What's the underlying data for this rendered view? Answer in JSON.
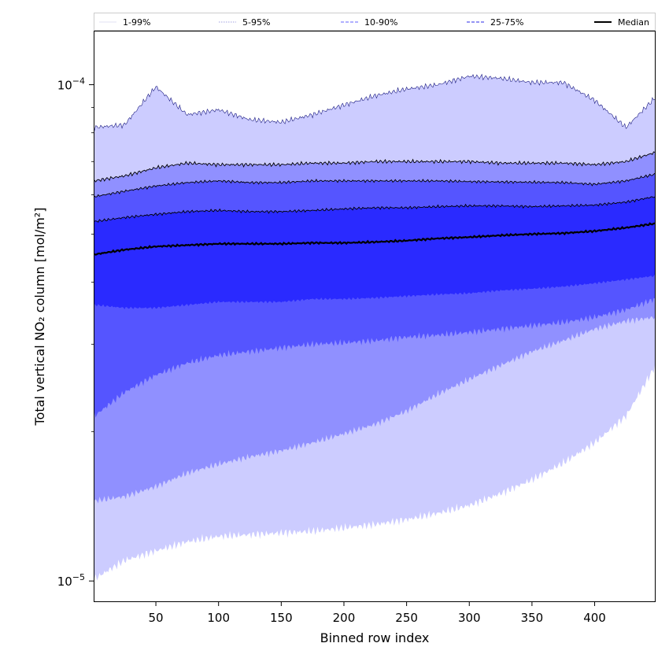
{
  "chart_data": {
    "type": "area",
    "title": "",
    "xlabel": "Binned row index",
    "ylabel": "Total vertical NO₂ column [mol/m²]",
    "xscale": "linear",
    "yscale": "log",
    "xlim": [
      1,
      448
    ],
    "ylim": [
      9.1e-06,
      0.000128
    ],
    "x_ticks": [
      50,
      100,
      150,
      200,
      250,
      300,
      350,
      400
    ],
    "x_tick_labels": [
      "50",
      "100",
      "150",
      "200",
      "250",
      "300",
      "350",
      "400"
    ],
    "y_ticks": [
      1e-05,
      0.0001
    ],
    "y_tick_labels": [
      {
        "base": "10",
        "exp": "−5"
      },
      {
        "base": "10",
        "exp": "−4"
      }
    ],
    "legend": {
      "position": "top",
      "entries": [
        {
          "label": "1-99%",
          "color": "#e6e6f5",
          "style": "solid"
        },
        {
          "label": "5-95%",
          "color": "#b3b3e6",
          "style": "dotted"
        },
        {
          "label": "10-90%",
          "color": "#8080ff",
          "style": "dashed"
        },
        {
          "label": "25-75%",
          "color": "#5555ee",
          "style": "dashed"
        },
        {
          "label": "Median",
          "color": "#000000",
          "style": "solid"
        }
      ]
    },
    "x_samples": [
      1,
      25,
      50,
      75,
      100,
      125,
      150,
      175,
      200,
      225,
      250,
      275,
      300,
      325,
      350,
      375,
      400,
      425,
      448
    ],
    "bands": [
      {
        "name": "1-99%",
        "color": "#ccccff",
        "lower": [
          1.01e-05,
          1.1e-05,
          1.15e-05,
          1.2e-05,
          1.23e-05,
          1.24e-05,
          1.25e-05,
          1.26e-05,
          1.28e-05,
          1.3e-05,
          1.33e-05,
          1.37e-05,
          1.42e-05,
          1.5e-05,
          1.6e-05,
          1.73e-05,
          1.9e-05,
          2.15e-05,
          2.7e-05
        ],
        "upper": [
          8.2e-05,
          8.3e-05,
          9.9e-05,
          8.7e-05,
          8.9e-05,
          8.5e-05,
          8.4e-05,
          8.7e-05,
          9.1e-05,
          9.5e-05,
          9.8e-05,
          0.0001,
          0.000104,
          0.000103,
          0.000101,
          0.000101,
          9.3e-05,
          8.2e-05,
          9.4e-05
        ]
      },
      {
        "name": "5-95%",
        "color": "#9090ff",
        "lower": [
          1.45e-05,
          1.48e-05,
          1.55e-05,
          1.65e-05,
          1.72e-05,
          1.78e-05,
          1.83e-05,
          1.9e-05,
          1.98e-05,
          2.07e-05,
          2.2e-05,
          2.38e-05,
          2.55e-05,
          2.72e-05,
          2.9e-05,
          3.05e-05,
          3.22e-05,
          3.34e-05,
          3.4e-05
        ],
        "upper": [
          6.4e-05,
          6.55e-05,
          6.8e-05,
          6.95e-05,
          6.9e-05,
          6.9e-05,
          6.9e-05,
          6.95e-05,
          6.95e-05,
          7e-05,
          7e-05,
          7e-05,
          7e-05,
          6.95e-05,
          6.95e-05,
          6.95e-05,
          6.9e-05,
          7e-05,
          7.3e-05
        ]
      },
      {
        "name": "10-90%",
        "color": "#5555ff",
        "lower": [
          2.15e-05,
          2.4e-05,
          2.6e-05,
          2.75e-05,
          2.85e-05,
          2.9e-05,
          2.95e-05,
          3e-05,
          3.02e-05,
          3.05e-05,
          3.1e-05,
          3.13e-05,
          3.17e-05,
          3.22e-05,
          3.27e-05,
          3.32e-05,
          3.4e-05,
          3.52e-05,
          3.7e-05
        ],
        "upper": [
          5.95e-05,
          6.1e-05,
          6.25e-05,
          6.35e-05,
          6.4e-05,
          6.35e-05,
          6.35e-05,
          6.4e-05,
          6.4e-05,
          6.4e-05,
          6.4e-05,
          6.4e-05,
          6.38e-05,
          6.37e-05,
          6.36e-05,
          6.35e-05,
          6.3e-05,
          6.4e-05,
          6.6e-05
        ]
      },
      {
        "name": "25-75%",
        "color": "#2a2aff",
        "lower": [
          3.6e-05,
          3.55e-05,
          3.55e-05,
          3.6e-05,
          3.65e-05,
          3.65e-05,
          3.65e-05,
          3.7e-05,
          3.7e-05,
          3.72e-05,
          3.75e-05,
          3.78e-05,
          3.8e-05,
          3.85e-05,
          3.88e-05,
          3.92e-05,
          3.98e-05,
          4.05e-05,
          4.12e-05
        ],
        "upper": [
          5.3e-05,
          5.4e-05,
          5.48e-05,
          5.55e-05,
          5.58e-05,
          5.55e-05,
          5.55e-05,
          5.58e-05,
          5.62e-05,
          5.65e-05,
          5.65e-05,
          5.68e-05,
          5.7e-05,
          5.7e-05,
          5.68e-05,
          5.7e-05,
          5.72e-05,
          5.8e-05,
          5.95e-05
        ]
      }
    ],
    "median": {
      "name": "Median",
      "color": "#000000",
      "values": [
        4.55e-05,
        4.65e-05,
        4.72e-05,
        4.75e-05,
        4.78e-05,
        4.78e-05,
        4.78e-05,
        4.8e-05,
        4.8e-05,
        4.82e-05,
        4.85e-05,
        4.9e-05,
        4.93e-05,
        4.97e-05,
        5e-05,
        5.02e-05,
        5.07e-05,
        5.15e-05,
        5.25e-05
      ]
    }
  }
}
